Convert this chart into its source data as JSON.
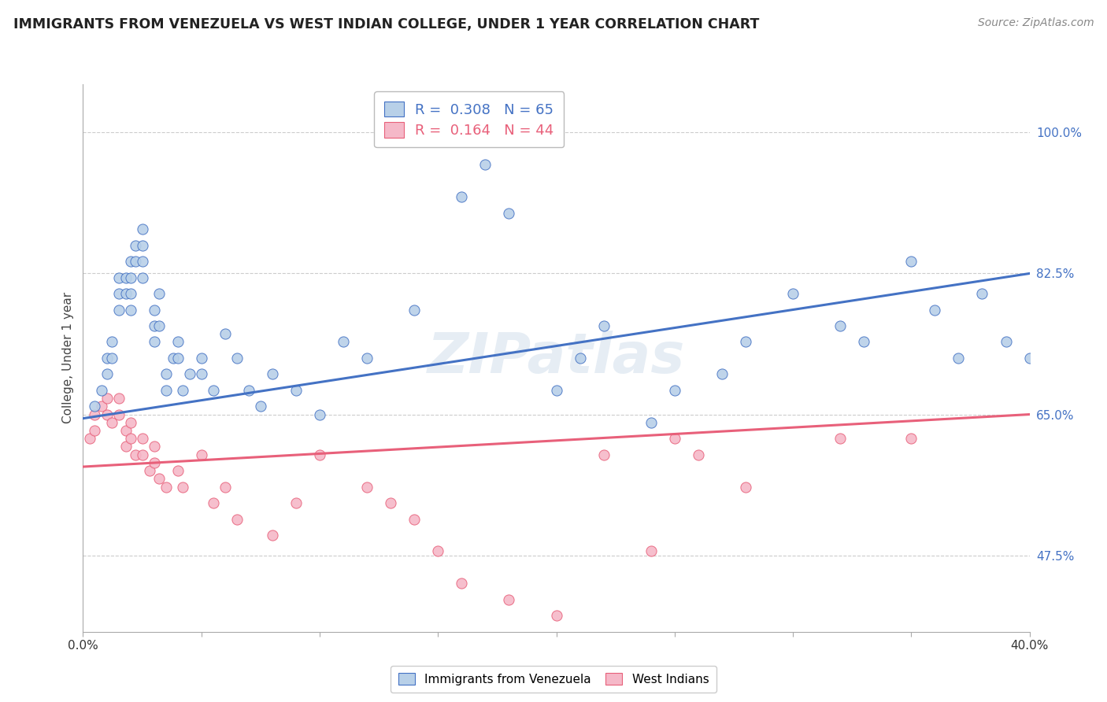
{
  "title": "IMMIGRANTS FROM VENEZUELA VS WEST INDIAN COLLEGE, UNDER 1 YEAR CORRELATION CHART",
  "source": "Source: ZipAtlas.com",
  "ylabel": "College, Under 1 year",
  "blue_label": "Immigrants from Venezuela",
  "pink_label": "West Indians",
  "blue_R": "0.308",
  "blue_N": "65",
  "pink_R": "0.164",
  "pink_N": "44",
  "blue_color": "#b8d0e8",
  "pink_color": "#f5b8c8",
  "blue_line_color": "#4472C4",
  "pink_line_color": "#E8607A",
  "watermark": "ZIPatlas",
  "xmin": 0.0,
  "xmax": 0.4,
  "ymin": 0.38,
  "ymax": 1.06,
  "yticks": [
    0.475,
    0.65,
    0.825,
    1.0
  ],
  "ytick_labels": [
    "47.5%",
    "65.0%",
    "82.5%",
    "100.0%"
  ],
  "xticks": [
    0.0,
    0.05,
    0.1,
    0.15,
    0.2,
    0.25,
    0.3,
    0.35,
    0.4
  ],
  "xtick_labels": [
    "0.0%",
    "",
    "",
    "",
    "",
    "",
    "",
    "",
    "40.0%"
  ],
  "blue_scatter_x": [
    0.005,
    0.008,
    0.01,
    0.01,
    0.012,
    0.012,
    0.015,
    0.015,
    0.015,
    0.018,
    0.018,
    0.02,
    0.02,
    0.02,
    0.02,
    0.022,
    0.022,
    0.025,
    0.025,
    0.025,
    0.025,
    0.03,
    0.03,
    0.03,
    0.032,
    0.032,
    0.035,
    0.035,
    0.038,
    0.04,
    0.04,
    0.042,
    0.045,
    0.05,
    0.05,
    0.055,
    0.06,
    0.065,
    0.07,
    0.075,
    0.08,
    0.09,
    0.1,
    0.11,
    0.12,
    0.14,
    0.16,
    0.17,
    0.18,
    0.2,
    0.21,
    0.22,
    0.24,
    0.25,
    0.27,
    0.28,
    0.3,
    0.32,
    0.33,
    0.35,
    0.36,
    0.37,
    0.38,
    0.39,
    0.4
  ],
  "blue_scatter_y": [
    0.66,
    0.68,
    0.72,
    0.7,
    0.74,
    0.72,
    0.82,
    0.8,
    0.78,
    0.82,
    0.8,
    0.84,
    0.82,
    0.8,
    0.78,
    0.86,
    0.84,
    0.88,
    0.86,
    0.84,
    0.82,
    0.78,
    0.76,
    0.74,
    0.8,
    0.76,
    0.7,
    0.68,
    0.72,
    0.74,
    0.72,
    0.68,
    0.7,
    0.72,
    0.7,
    0.68,
    0.75,
    0.72,
    0.68,
    0.66,
    0.7,
    0.68,
    0.65,
    0.74,
    0.72,
    0.78,
    0.92,
    0.96,
    0.9,
    0.68,
    0.72,
    0.76,
    0.64,
    0.68,
    0.7,
    0.74,
    0.8,
    0.76,
    0.74,
    0.84,
    0.78,
    0.72,
    0.8,
    0.74,
    0.72
  ],
  "pink_scatter_x": [
    0.003,
    0.005,
    0.005,
    0.008,
    0.01,
    0.01,
    0.012,
    0.015,
    0.015,
    0.018,
    0.018,
    0.02,
    0.02,
    0.022,
    0.025,
    0.025,
    0.028,
    0.03,
    0.03,
    0.032,
    0.035,
    0.04,
    0.042,
    0.05,
    0.055,
    0.06,
    0.065,
    0.08,
    0.09,
    0.1,
    0.12,
    0.13,
    0.14,
    0.15,
    0.16,
    0.18,
    0.2,
    0.22,
    0.24,
    0.25,
    0.26,
    0.28,
    0.32,
    0.35
  ],
  "pink_scatter_y": [
    0.62,
    0.65,
    0.63,
    0.66,
    0.67,
    0.65,
    0.64,
    0.67,
    0.65,
    0.63,
    0.61,
    0.64,
    0.62,
    0.6,
    0.62,
    0.6,
    0.58,
    0.61,
    0.59,
    0.57,
    0.56,
    0.58,
    0.56,
    0.6,
    0.54,
    0.56,
    0.52,
    0.5,
    0.54,
    0.6,
    0.56,
    0.54,
    0.52,
    0.48,
    0.44,
    0.42,
    0.4,
    0.6,
    0.48,
    0.62,
    0.6,
    0.56,
    0.62,
    0.62
  ],
  "blue_trend_x0": 0.0,
  "blue_trend_y0": 0.645,
  "blue_trend_x1": 0.4,
  "blue_trend_y1": 0.825,
  "pink_trend_x0": 0.0,
  "pink_trend_y0": 0.585,
  "pink_trend_x1": 0.4,
  "pink_trend_y1": 0.65
}
